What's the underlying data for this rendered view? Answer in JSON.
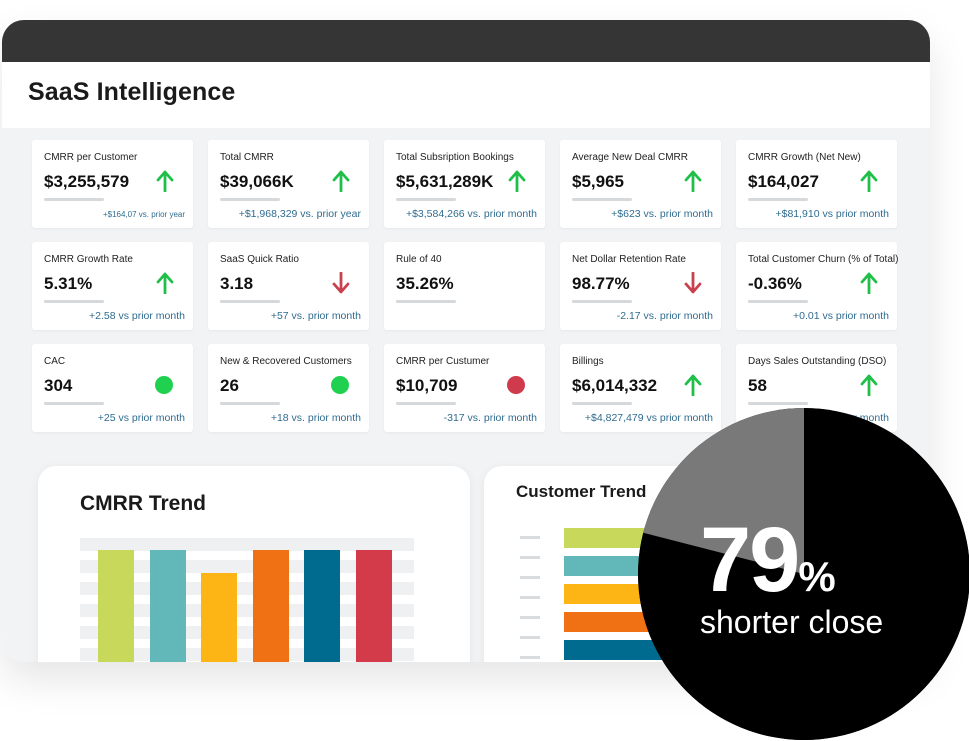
{
  "app": {
    "title": "SaaS Intelligence"
  },
  "kpis": [
    {
      "label": "CMRR per Customer",
      "value": "$3,255,579",
      "compare": "+$164,07 vs. prior year",
      "indicator": "up-arrow"
    },
    {
      "label": "Total CMRR",
      "value": "$39,066K",
      "compare": "+$1,968,329 vs. prior year",
      "indicator": "up-arrow"
    },
    {
      "label": "Total Subsription Bookings",
      "value": "$5,631,289K",
      "compare": "+$3,584,266 vs. prior month",
      "indicator": "up-arrow"
    },
    {
      "label": "Average New Deal CMRR",
      "value": "$5,965",
      "compare": "+$623 vs. prior month",
      "indicator": "up-arrow"
    },
    {
      "label": "CMRR Growth (Net New)",
      "value": "$164,027",
      "compare": "+$81,910 vs prior month",
      "indicator": "up-arrow"
    },
    {
      "label": "CMRR Growth Rate",
      "value": "5.31%",
      "compare": "+2.58 vs prior month",
      "indicator": "up-arrow"
    },
    {
      "label": "SaaS Quick Ratio",
      "value": "3.18",
      "compare": "+57 vs. prior month",
      "indicator": "down-arrow"
    },
    {
      "label": "Rule of 40",
      "value": "35.26%",
      "compare": "",
      "indicator": "none"
    },
    {
      "label": "Net Dollar Retention Rate",
      "value": "98.77%",
      "compare": "-2.17 vs. prior month",
      "indicator": "down-arrow"
    },
    {
      "label": "Total Customer Churn (% of Total)",
      "value": "-0.36%",
      "compare": "+0.01 vs prior month",
      "indicator": "up-arrow"
    },
    {
      "label": "CAC",
      "value": "304",
      "compare": "+25 vs prior month",
      "indicator": "green-dot"
    },
    {
      "label": "New & Recovered Customers",
      "value": "26",
      "compare": "+18 vs. prior month",
      "indicator": "green-dot"
    },
    {
      "label": "CMRR per Custumer",
      "value": "$10,709",
      "compare": "-317 vs. prior month",
      "indicator": "red-dot"
    },
    {
      "label": "Billings",
      "value": "$6,014,332",
      "compare": "+$4,827,479 vs prior month",
      "indicator": "up-arrow"
    },
    {
      "label": "Days Sales Outstanding (DSO)",
      "value": "58",
      "compare": "+79 vs prior month",
      "indicator": "up-arrow"
    }
  ],
  "colors": {
    "up": "#1fbf4a",
    "down": "#c8414f",
    "green_dot": "#1fd14f",
    "red_dot": "#cf3a4c",
    "accent_blue": "#2f6c8f"
  },
  "cmrr_trend": {
    "title": "CMRR Trend",
    "chart_data": {
      "type": "bar",
      "title": "CMRR Trend",
      "categories": [
        "",
        "",
        "",
        "",
        "",
        ""
      ],
      "values": [
        100,
        100,
        84,
        100,
        100,
        100
      ],
      "ylim": [
        0,
        100
      ],
      "colors": [
        "#c8d85a",
        "#62b8b8",
        "#fdb515",
        "#f07014",
        "#006b8f",
        "#d33a4a"
      ]
    }
  },
  "customer_trend": {
    "title": "Customer Trend",
    "chart_data": {
      "type": "bar",
      "orientation": "horizontal",
      "title": "Customer Trend",
      "categories": [
        "",
        "",
        "",
        "",
        "",
        ""
      ],
      "values": [
        100,
        100,
        100,
        100,
        100,
        100
      ],
      "colors": [
        "#c8d85a",
        "#62b8b8",
        "#fdb515",
        "#f07014",
        "#006b8f",
        "#d33a4a"
      ]
    }
  },
  "badge": {
    "percent": "79",
    "percent_sign": "%",
    "caption": "shorter close",
    "chart_data": {
      "type": "pie",
      "values": [
        79,
        21
      ],
      "colors": [
        "#000000",
        "#8a8a8a"
      ]
    }
  }
}
